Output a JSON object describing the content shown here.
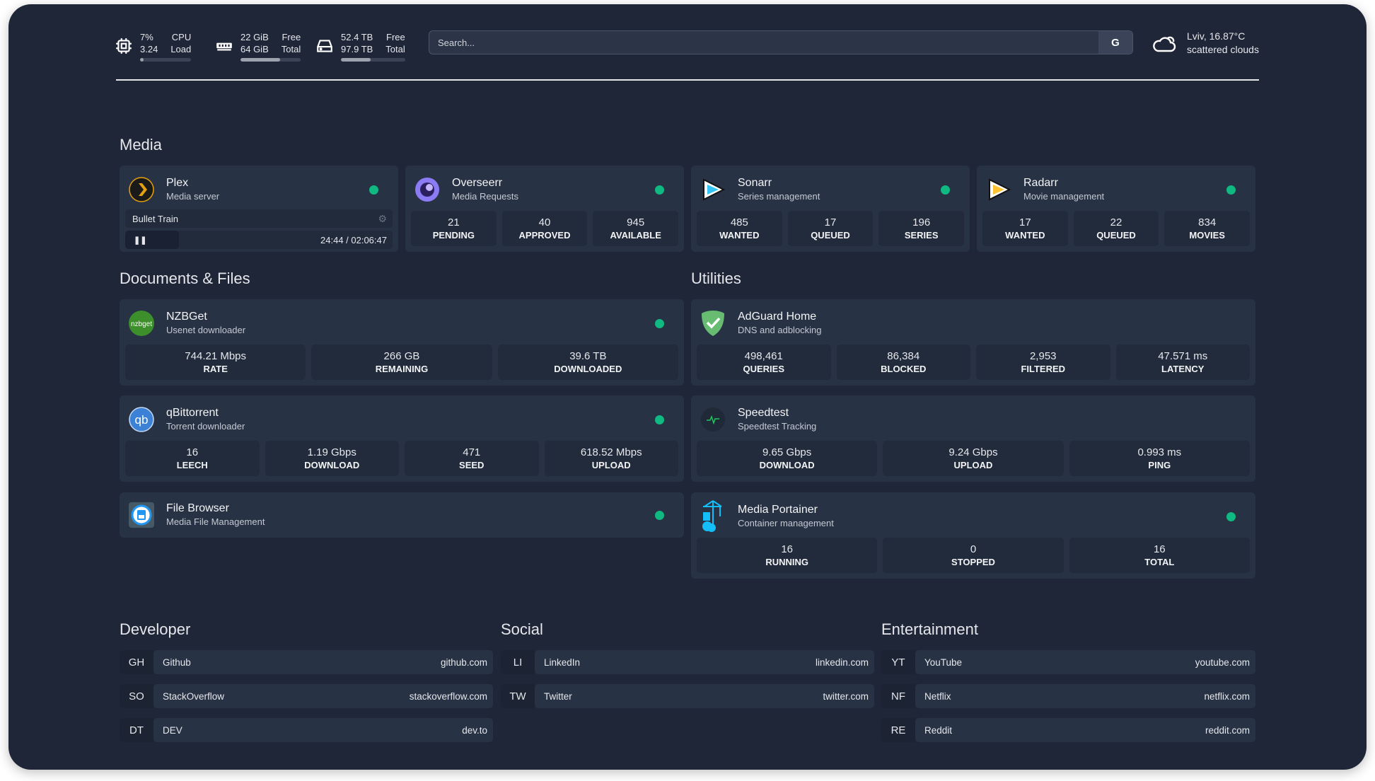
{
  "header": {
    "cpu": {
      "value1": "7%",
      "value2": "3.24",
      "label1": "CPU",
      "label2": "Load",
      "percent": 7
    },
    "memory": {
      "value1": "22 GiB",
      "value2": "64 GiB",
      "label1": "Free",
      "label2": "Total",
      "percent": 66
    },
    "disk": {
      "value1": "52.4 TB",
      "value2": "97.9 TB",
      "label1": "Free",
      "label2": "Total",
      "percent": 46
    },
    "search": {
      "placeholder": "Search...",
      "engine": "G"
    },
    "weather": {
      "location_temp": "Lviv, 16.87°C",
      "condition": "scattered clouds"
    }
  },
  "sections": {
    "media": "Media",
    "docs": "Documents & Files",
    "utilities": "Utilities",
    "developer": "Developer",
    "social": "Social",
    "entertainment": "Entertainment"
  },
  "media": [
    {
      "name": "Plex",
      "desc": "Media server",
      "now_playing": "Bullet Train",
      "time": "24:44 / 02:06:47",
      "progress": 20
    },
    {
      "name": "Overseerr",
      "desc": "Media Requests",
      "stats": [
        {
          "v": "21",
          "l": "PENDING"
        },
        {
          "v": "40",
          "l": "APPROVED"
        },
        {
          "v": "945",
          "l": "AVAILABLE"
        }
      ]
    },
    {
      "name": "Sonarr",
      "desc": "Series management",
      "stats": [
        {
          "v": "485",
          "l": "WANTED"
        },
        {
          "v": "17",
          "l": "QUEUED"
        },
        {
          "v": "196",
          "l": "SERIES"
        }
      ]
    },
    {
      "name": "Radarr",
      "desc": "Movie management",
      "stats": [
        {
          "v": "17",
          "l": "WANTED"
        },
        {
          "v": "22",
          "l": "QUEUED"
        },
        {
          "v": "834",
          "l": "MOVIES"
        }
      ]
    }
  ],
  "docs": [
    {
      "name": "NZBGet",
      "desc": "Usenet downloader",
      "logo_text": "nzbget",
      "stats": [
        {
          "v": "744.21 Mbps",
          "l": "RATE"
        },
        {
          "v": "266 GB",
          "l": "REMAINING"
        },
        {
          "v": "39.6 TB",
          "l": "DOWNLOADED"
        }
      ]
    },
    {
      "name": "qBittorrent",
      "desc": "Torrent downloader",
      "logo_text": "qb",
      "stats": [
        {
          "v": "16",
          "l": "LEECH"
        },
        {
          "v": "1.19 Gbps",
          "l": "DOWNLOAD"
        },
        {
          "v": "471",
          "l": "SEED"
        },
        {
          "v": "618.52 Mbps",
          "l": "UPLOAD"
        }
      ]
    },
    {
      "name": "File Browser",
      "desc": "Media File Management"
    }
  ],
  "utilities": [
    {
      "name": "AdGuard Home",
      "desc": "DNS and adblocking",
      "stats": [
        {
          "v": "498,461",
          "l": "QUERIES"
        },
        {
          "v": "86,384",
          "l": "BLOCKED"
        },
        {
          "v": "2,953",
          "l": "FILTERED"
        },
        {
          "v": "47.571 ms",
          "l": "LATENCY"
        }
      ]
    },
    {
      "name": "Speedtest",
      "desc": "Speedtest Tracking",
      "stats": [
        {
          "v": "9.65 Gbps",
          "l": "DOWNLOAD"
        },
        {
          "v": "9.24 Gbps",
          "l": "UPLOAD"
        },
        {
          "v": "0.993 ms",
          "l": "PING"
        }
      ]
    },
    {
      "name": "Media Portainer",
      "desc": "Container management",
      "stats": [
        {
          "v": "16",
          "l": "RUNNING"
        },
        {
          "v": "0",
          "l": "STOPPED"
        },
        {
          "v": "16",
          "l": "TOTAL"
        }
      ]
    }
  ],
  "bookmarks": {
    "developer": [
      {
        "ab": "GH",
        "name": "Github",
        "url": "github.com"
      },
      {
        "ab": "SO",
        "name": "StackOverflow",
        "url": "stackoverflow.com"
      },
      {
        "ab": "DT",
        "name": "DEV",
        "url": "dev.to"
      }
    ],
    "social": [
      {
        "ab": "LI",
        "name": "LinkedIn",
        "url": "linkedin.com"
      },
      {
        "ab": "TW",
        "name": "Twitter",
        "url": "twitter.com"
      }
    ],
    "entertainment": [
      {
        "ab": "YT",
        "name": "YouTube",
        "url": "youtube.com"
      },
      {
        "ab": "NF",
        "name": "Netflix",
        "url": "netflix.com"
      },
      {
        "ab": "RE",
        "name": "Reddit",
        "url": "reddit.com"
      }
    ]
  },
  "colors": {
    "background": "#1f2638",
    "card": "#283245",
    "status_ok": "#10b981"
  }
}
